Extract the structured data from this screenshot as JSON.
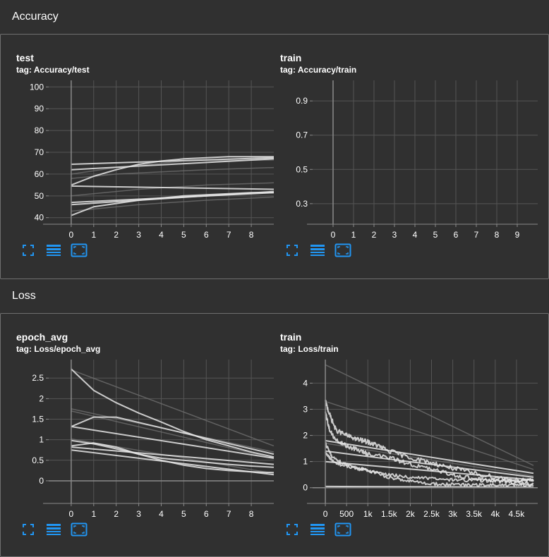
{
  "sections": [
    {
      "title": "Accuracy",
      "cards": [
        {
          "title": "test",
          "tag": "tag: Accuracy/test",
          "chart_data": {
            "type": "line",
            "xlim": [
              -1,
              9
            ],
            "ylim": [
              37,
              103
            ],
            "xticks": [
              0,
              1,
              2,
              3,
              4,
              5,
              6,
              7,
              8
            ],
            "xticklabels": [
              "0",
              "1",
              "2",
              "3",
              "4",
              "5",
              "6",
              "7",
              "8"
            ],
            "yticks": [
              40,
              50,
              60,
              70,
              80,
              90,
              100
            ],
            "yticklabels": [
              "40",
              "50",
              "60",
              "70",
              "80",
              "90",
              "100"
            ],
            "grid": true,
            "series": [
              {
                "x": [
                  0,
                  1,
                  2,
                  3,
                  4,
                  5,
                  6,
                  7,
                  8,
                  9
                ],
                "y": [
                  55,
                  59,
                  62,
                  64.5,
                  66,
                  67,
                  67.5,
                  68,
                  68,
                  68
                ],
                "style": "main"
              },
              {
                "x": [
                  0,
                  9
                ],
                "y": [
                  62,
                  67
                ],
                "style": "main"
              },
              {
                "x": [
                  0,
                  9
                ],
                "y": [
                  64.5,
                  67.5
                ],
                "style": "main"
              },
              {
                "x": [
                  0,
                  9
                ],
                "y": [
                  54.5,
                  53
                ],
                "style": "main"
              },
              {
                "x": [
                  0,
                  9
                ],
                "y": [
                  47,
                  51.5
                ],
                "style": "main"
              },
              {
                "x": [
                  0,
                  9
                ],
                "y": [
                  46,
                  52
                ],
                "style": "main"
              },
              {
                "x": [
                  0,
                  1,
                  2,
                  3,
                  4,
                  5,
                  6,
                  7,
                  8,
                  9
                ],
                "y": [
                  41,
                  45,
                  46.5,
                  48,
                  49,
                  50,
                  50.5,
                  51,
                  51.5,
                  51.5
                ],
                "style": "main"
              },
              {
                "x": [
                  0,
                  2,
                  4,
                  6,
                  9
                ],
                "y": [
                  58,
                  60,
                  61,
                  62,
                  63
                ],
                "style": "faint"
              },
              {
                "x": [
                  0,
                  3,
                  6,
                  9
                ],
                "y": [
                  50,
                  53,
                  55,
                  56
                ],
                "style": "faint"
              },
              {
                "x": [
                  0,
                  3,
                  6,
                  9
                ],
                "y": [
                  43,
                  46,
                  48,
                  49.5
                ],
                "style": "faint"
              },
              {
                "x": [
                  0,
                  2,
                  5,
                  9
                ],
                "y": [
                  60,
                  63,
                  66,
                  66.5
                ],
                "style": "faint"
              }
            ]
          }
        },
        {
          "title": "train",
          "tag": "tag: Accuracy/train",
          "chart_data": {
            "type": "line",
            "xlim": [
              -1,
              10
            ],
            "ylim": [
              0.18,
              1.02
            ],
            "xticks": [
              0,
              1,
              2,
              3,
              4,
              5,
              6,
              7,
              8,
              9
            ],
            "xticklabels": [
              "0",
              "1",
              "2",
              "3",
              "4",
              "5",
              "6",
              "7",
              "8",
              "9"
            ],
            "yticks": [
              0.3,
              0.5,
              0.7,
              0.9
            ],
            "yticklabels": [
              "0.3",
              "0.5",
              "0.7",
              "0.9"
            ],
            "grid": true,
            "series": []
          }
        }
      ]
    },
    {
      "title": "Loss",
      "cards": [
        {
          "title": "epoch_avg",
          "tag": "tag: Loss/epoch_avg",
          "chart_data": {
            "type": "line",
            "xlim": [
              -1,
              9
            ],
            "ylim": [
              -0.55,
              2.95
            ],
            "xticks": [
              0,
              1,
              2,
              3,
              4,
              5,
              6,
              7,
              8
            ],
            "xticklabels": [
              "0",
              "1",
              "2",
              "3",
              "4",
              "5",
              "6",
              "7",
              "8"
            ],
            "yticks": [
              0,
              0.5,
              1,
              1.5,
              2,
              2.5
            ],
            "yticklabels": [
              "0",
              "0.5",
              "1",
              "1.5",
              "2",
              "2.5"
            ],
            "grid": true,
            "series": [
              {
                "x": [
                  0,
                  1,
                  2,
                  3,
                  4,
                  5,
                  6,
                  7,
                  8,
                  9
                ],
                "y": [
                  2.72,
                  2.2,
                  1.9,
                  1.65,
                  1.43,
                  1.2,
                  1.0,
                  0.85,
                  0.7,
                  0.58
                ],
                "style": "main"
              },
              {
                "x": [
                  0,
                  1,
                  2,
                  3,
                  9
                ],
                "y": [
                  1.32,
                  1.55,
                  1.55,
                  1.42,
                  0.65
                ],
                "style": "main"
              },
              {
                "x": [
                  0,
                  9
                ],
                "y": [
                  1.32,
                  0.55
                ],
                "style": "main"
              },
              {
                "x": [
                  0,
                  1,
                  2,
                  3,
                  4,
                  5,
                  6,
                  7,
                  8,
                  9
                ],
                "y": [
                  0.98,
                  0.9,
                  0.78,
                  0.65,
                  0.5,
                  0.38,
                  0.3,
                  0.25,
                  0.22,
                  0.2
                ],
                "style": "main"
              },
              {
                "x": [
                  0,
                  1,
                  2,
                  3,
                  4,
                  5,
                  6,
                  7,
                  8,
                  9
                ],
                "y": [
                  0.85,
                  0.92,
                  0.82,
                  0.65,
                  0.55,
                  0.5,
                  0.45,
                  0.4,
                  0.36,
                  0.33
                ],
                "style": "main"
              },
              {
                "x": [
                  0,
                  9
                ],
                "y": [
                  0.82,
                  0.4
                ],
                "style": "main"
              },
              {
                "x": [
                  0,
                  9
                ],
                "y": [
                  0.75,
                  0.15
                ],
                "style": "main"
              },
              {
                "x": [
                  0,
                  9
                ],
                "y": [
                  2.7,
                  0.85
                ],
                "style": "faint"
              },
              {
                "x": [
                  0,
                  9
                ],
                "y": [
                  1.75,
                  0.7
                ],
                "style": "faint"
              },
              {
                "x": [
                  0,
                  9
                ],
                "y": [
                  1.7,
                  0.55
                ],
                "style": "faint"
              },
              {
                "x": [
                  0,
                  9
                ],
                "y": [
                  1.02,
                  0.18
                ],
                "style": "faint"
              }
            ]
          }
        },
        {
          "title": "train",
          "tag": "tag: Loss/train",
          "chart_data": {
            "type": "line",
            "xlim": [
              -300,
              5000
            ],
            "ylim": [
              -0.6,
              4.9
            ],
            "xticks": [
              0,
              500,
              1000,
              1500,
              2000,
              2500,
              3000,
              3500,
              4000,
              4500
            ],
            "xticklabels": [
              "0",
              "500",
              "1k",
              "1.5k",
              "2k",
              "2.5k",
              "3k",
              "3.5k",
              "4k",
              "4.5k"
            ],
            "yticks": [
              0,
              1,
              2,
              3,
              4
            ],
            "yticklabels": [
              "0",
              "1",
              "2",
              "3",
              "4"
            ],
            "grid": true,
            "series": [
              {
                "x": [
                  0,
                  100,
                  250,
                  500,
                  750,
                  1000,
                  1250,
                  1500,
                  2000,
                  2500,
                  3000,
                  3500,
                  4000,
                  4500,
                  4900
                ],
                "y": [
                  3.3,
                  2.8,
                  2.2,
                  2.0,
                  1.85,
                  1.75,
                  1.6,
                  1.4,
                  1.15,
                  0.95,
                  0.75,
                  0.55,
                  0.4,
                  0.3,
                  0.25
                ],
                "style": "main",
                "noise": 0.09
              },
              {
                "x": [
                  0,
                  100,
                  250,
                  500,
                  750,
                  1000,
                  1500,
                  2000,
                  2500,
                  3000,
                  3500,
                  4000,
                  4500,
                  4900
                ],
                "y": [
                  2.9,
                  2.2,
                  1.8,
                  1.6,
                  1.45,
                  1.3,
                  1.15,
                  0.9,
                  0.7,
                  0.5,
                  0.35,
                  0.25,
                  0.2,
                  0.15
                ],
                "style": "main",
                "noise": 0.08
              },
              {
                "x": [
                  0,
                  150,
                  400,
                  700,
                  1000,
                  1500,
                  2000,
                  2500,
                  3000,
                  3500,
                  4000,
                  4500,
                  4900
                ],
                "y": [
                  1.7,
                  1.2,
                  0.95,
                  0.8,
                  0.65,
                  0.4,
                  0.25,
                  0.15,
                  0.12,
                  0.1,
                  0.1,
                  0.1,
                  0.08
                ],
                "style": "main",
                "noise": 0.06
              },
              {
                "x": [
                  0,
                  150,
                  400,
                  700,
                  1000,
                  1500,
                  2000,
                  2500,
                  3000,
                  3500,
                  4000,
                  4500,
                  4900
                ],
                "y": [
                  1.35,
                  1.05,
                  0.85,
                  0.75,
                  0.65,
                  0.5,
                  0.4,
                  0.35,
                  0.3,
                  0.28,
                  0.28,
                  0.27,
                  0.25
                ],
                "style": "main",
                "noise": 0.06
              },
              {
                "x": [
                  0,
                  4900
                ],
                "y": [
                  1.8,
                  0.55
                ],
                "style": "main"
              },
              {
                "x": [
                  0,
                  4900
                ],
                "y": [
                  1.4,
                  0.4
                ],
                "style": "main"
              },
              {
                "x": [
                  0,
                  4900
                ],
                "y": [
                  1.0,
                  0.3
                ],
                "style": "main"
              },
              {
                "x": [
                  0,
                  4900
                ],
                "y": [
                  0.05,
                  0.02
                ],
                "style": "main"
              },
              {
                "x": [
                  0,
                  4900
                ],
                "y": [
                  4.7,
                  0.85
                ],
                "style": "faint"
              },
              {
                "x": [
                  0,
                  4900
                ],
                "y": [
                  3.3,
                  0.7
                ],
                "style": "faint"
              },
              {
                "x": [
                  0,
                  4900
                ],
                "y": [
                  1.7,
                  0.45
                ],
                "style": "faint"
              }
            ]
          }
        }
      ]
    }
  ],
  "toolbar_icons": [
    "fullscreen-icon",
    "lines-icon",
    "fit-domain-icon"
  ],
  "colors": {
    "background": "#303030",
    "grid": "#555555",
    "axis": "#8a8a8a",
    "line": "#e6e6e6",
    "line_faint": "#6e6e6e",
    "accent": "#2196f3"
  }
}
